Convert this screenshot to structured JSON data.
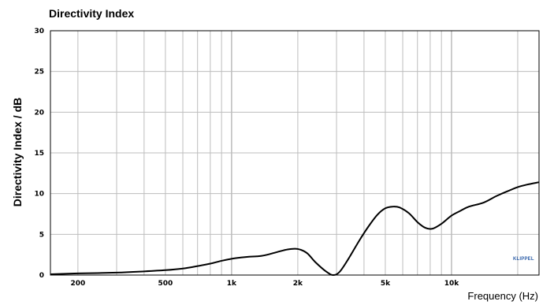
{
  "chart_data": {
    "type": "line",
    "title": "Directivity Index",
    "xlabel": "Frequency (Hz)",
    "ylabel": "Directivity Index / dB",
    "xscale": "log",
    "xlim": [
      150,
      25000
    ],
    "ylim": [
      0,
      30
    ],
    "grid": true,
    "xticks": [
      {
        "value": 200,
        "label": "200"
      },
      {
        "value": 500,
        "label": "500"
      },
      {
        "value": 1000,
        "label": "1k"
      },
      {
        "value": 2000,
        "label": "2k"
      },
      {
        "value": 5000,
        "label": "5k"
      },
      {
        "value": 10000,
        "label": "10k"
      }
    ],
    "yticks": [
      0,
      5,
      10,
      15,
      20,
      25,
      30
    ],
    "series": [
      {
        "name": "",
        "color": "#000000",
        "x": [
          150,
          200,
          300,
          400,
          500,
          600,
          700,
          800,
          900,
          1000,
          1100,
          1200,
          1300,
          1400,
          1600,
          1800,
          2000,
          2200,
          2400,
          2700,
          2900,
          3100,
          3400,
          3800,
          4200,
          4600,
          5000,
          5400,
          5800,
          6400,
          7000,
          7600,
          8200,
          9000,
          10000,
          11000,
          12000,
          14000,
          16000,
          18000,
          20000,
          22000,
          25000
        ],
        "y": [
          0.1,
          0.2,
          0.3,
          0.45,
          0.6,
          0.8,
          1.1,
          1.4,
          1.75,
          2.0,
          2.15,
          2.25,
          2.3,
          2.4,
          2.8,
          3.15,
          3.2,
          2.7,
          1.6,
          0.4,
          0.0,
          0.4,
          2.0,
          4.2,
          6.0,
          7.4,
          8.2,
          8.4,
          8.3,
          7.6,
          6.5,
          5.8,
          5.7,
          6.3,
          7.3,
          7.9,
          8.4,
          8.9,
          9.7,
          10.3,
          10.8,
          11.1,
          11.4
        ]
      }
    ]
  },
  "logo_text": "KLIPPEL"
}
